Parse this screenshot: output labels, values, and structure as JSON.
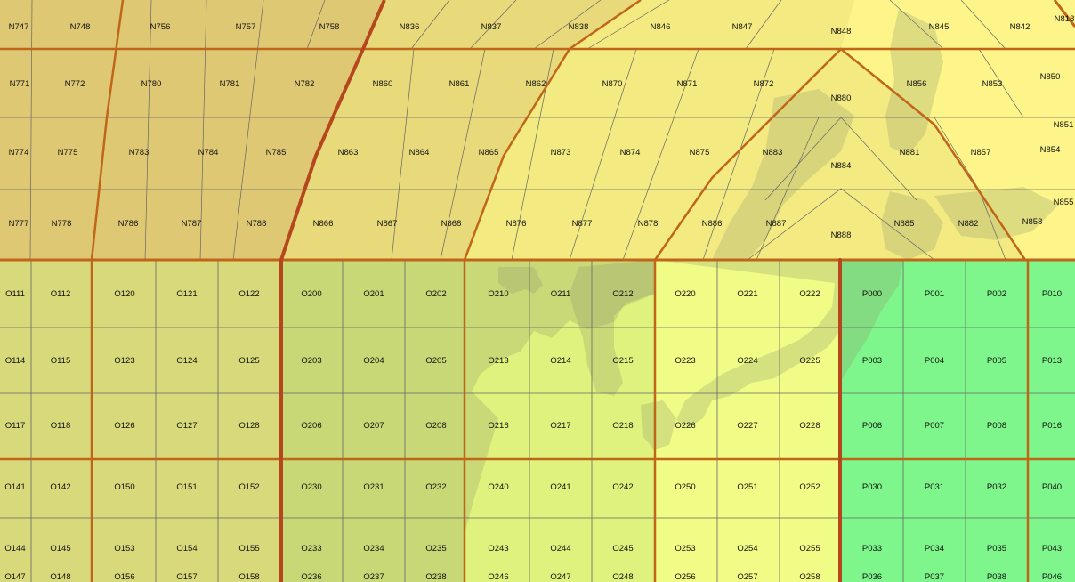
{
  "map": {
    "colors": {
      "zone_n_west": "#dfc874",
      "zone_n_mid": "#e8d97a",
      "zone_n_east": "#f3ea82",
      "zone_n_far_east": "#fdf58a",
      "zone_o_west": "#d8d97a",
      "zone_o_mid": "#c9d876",
      "zone_o_east": "#dff27d",
      "zone_o_far_east": "#f0fc86",
      "zone_p": "#7ef68b",
      "land": "#8f9a6a",
      "grid_line": "#666666",
      "zone_border": "#c0661a",
      "zone_border_major": "#b5461d",
      "label": "#111111"
    },
    "n_row1": [
      "N747",
      "N748",
      "N756",
      "N757",
      "N758",
      "N836",
      "N837",
      "N838",
      "N846",
      "N847",
      "N848",
      "N845",
      "N842",
      "N818"
    ],
    "n_row2": [
      "N771",
      "N772",
      "N780",
      "N781",
      "N782",
      "N860",
      "N861",
      "N862",
      "N870",
      "N871",
      "N872",
      "N880",
      "N856",
      "N853",
      "N850"
    ],
    "n_row3": [
      "N774",
      "N775",
      "N783",
      "N784",
      "N785",
      "N863",
      "N864",
      "N865",
      "N873",
      "N874",
      "N875",
      "N883",
      "N884",
      "N881",
      "N857",
      "N854",
      "N851"
    ],
    "n_row4": [
      "N777",
      "N778",
      "N786",
      "N787",
      "N788",
      "N866",
      "N867",
      "N868",
      "N876",
      "N877",
      "N878",
      "N886",
      "N887",
      "N888",
      "N885",
      "N882",
      "N858",
      "N855"
    ],
    "o_rows": [
      [
        "O111",
        "O112",
        "O120",
        "O121",
        "O122",
        "O200",
        "O201",
        "O202",
        "O210",
        "O211",
        "O212",
        "O220",
        "O221",
        "O222",
        "P000",
        "P001",
        "P002",
        "P010"
      ],
      [
        "O114",
        "O115",
        "O123",
        "O124",
        "O125",
        "O203",
        "O204",
        "O205",
        "O213",
        "O214",
        "O215",
        "O223",
        "O224",
        "O225",
        "P003",
        "P004",
        "P005",
        "P013"
      ],
      [
        "O117",
        "O118",
        "O126",
        "O127",
        "O128",
        "O206",
        "O207",
        "O208",
        "O216",
        "O217",
        "O218",
        "O226",
        "O227",
        "O228",
        "P006",
        "P007",
        "P008",
        "P016"
      ],
      [
        "O141",
        "O142",
        "O150",
        "O151",
        "O152",
        "O230",
        "O231",
        "O232",
        "O240",
        "O241",
        "O242",
        "O250",
        "O251",
        "O252",
        "P030",
        "P031",
        "P032",
        "P040"
      ],
      [
        "O144",
        "O145",
        "O153",
        "O154",
        "O155",
        "O233",
        "O234",
        "O235",
        "O243",
        "O244",
        "O245",
        "O253",
        "O254",
        "O255",
        "P033",
        "P034",
        "P035",
        "P043"
      ],
      [
        "O147",
        "O148",
        "O156",
        "O157",
        "O158",
        "O236",
        "O237",
        "O238",
        "O246",
        "O247",
        "O248",
        "O256",
        "O257",
        "O258",
        "P036",
        "P037",
        "P038",
        "P046"
      ]
    ]
  }
}
